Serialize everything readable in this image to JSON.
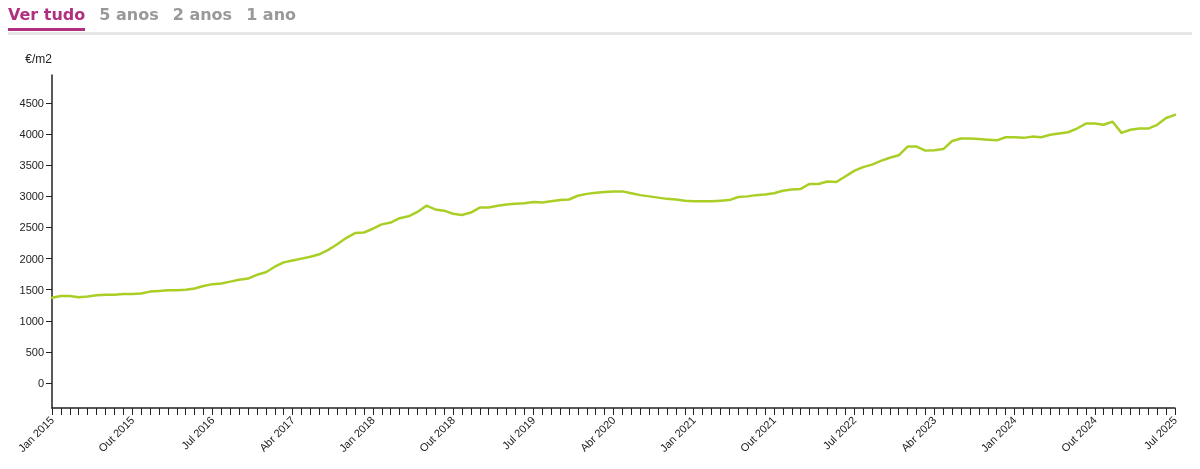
{
  "chart_data": {
    "type": "line",
    "annotations": [
      "Ver tudo",
      "5 anos",
      "2 anos",
      "1 ano"
    ],
    "ylabel": "€/m2",
    "categories": [
      "Jan 2015",
      null,
      null,
      null,
      null,
      null,
      null,
      null,
      null,
      "Out 2015",
      null,
      null,
      null,
      null,
      null,
      null,
      null,
      null,
      "Jul 2016",
      null,
      null,
      null,
      null,
      null,
      null,
      null,
      null,
      "Abr 2017",
      null,
      null,
      null,
      null,
      null,
      null,
      null,
      null,
      "Jan 2018",
      null,
      null,
      null,
      null,
      null,
      null,
      null,
      null,
      "Out 2018",
      null,
      null,
      null,
      null,
      null,
      null,
      null,
      null,
      "Jul 2019",
      null,
      null,
      null,
      null,
      null,
      null,
      null,
      null,
      "Abr 2020",
      null,
      null,
      null,
      null,
      null,
      null,
      null,
      null,
      "Jan 2021",
      null,
      null,
      null,
      null,
      null,
      null,
      null,
      null,
      "Out 2021",
      null,
      null,
      null,
      null,
      null,
      null,
      null,
      null,
      "Jul 2022",
      null,
      null,
      null,
      null,
      null,
      null,
      null,
      null,
      "Abr 2023",
      null,
      null,
      null,
      null,
      null,
      null,
      null,
      null,
      "Jan 2024",
      null,
      null,
      null,
      null,
      null,
      null,
      null,
      null,
      "Out 2024",
      null,
      null,
      null,
      null,
      null,
      null,
      null,
      null,
      "Jul 2025"
    ],
    "series": [
      {
        "color": "#a9cf27",
        "values": [
          1370,
          1400,
          1400,
          1380,
          1390,
          1410,
          1420,
          1420,
          1430,
          1430,
          1440,
          1470,
          1480,
          1490,
          1490,
          1500,
          1520,
          1560,
          1590,
          1600,
          1630,
          1660,
          1680,
          1740,
          1780,
          1870,
          1940,
          1970,
          2000,
          2030,
          2070,
          2140,
          2230,
          2330,
          2410,
          2420,
          2480,
          2550,
          2580,
          2650,
          2680,
          2750,
          2850,
          2790,
          2770,
          2720,
          2700,
          2740,
          2820,
          2820,
          2850,
          2870,
          2880,
          2890,
          2910,
          2900,
          2920,
          2940,
          2950,
          3010,
          3040,
          3060,
          3070,
          3080,
          3080,
          3050,
          3020,
          3000,
          2980,
          2960,
          2950,
          2930,
          2920,
          2920,
          2920,
          2930,
          2940,
          2990,
          3000,
          3020,
          3030,
          3050,
          3090,
          3110,
          3120,
          3200,
          3200,
          3240,
          3230,
          3320,
          3410,
          3470,
          3510,
          3570,
          3620,
          3660,
          3800,
          3800,
          3735,
          3740,
          3760,
          3890,
          3930,
          3930,
          3920,
          3910,
          3900,
          3950,
          3950,
          3940,
          3960,
          3950,
          3990,
          4010,
          4030,
          4090,
          4170,
          4170,
          4150,
          4200,
          4020,
          4070,
          4090,
          4090,
          4150,
          4260,
          4310
        ]
      }
    ],
    "ylim": [
      -400,
      4950
    ],
    "yticks": [
      0,
      500,
      1000,
      1500,
      2000,
      2500,
      3000,
      3500,
      4000,
      4500
    ],
    "grid": false,
    "marker": "none",
    "line_style": "solid"
  }
}
